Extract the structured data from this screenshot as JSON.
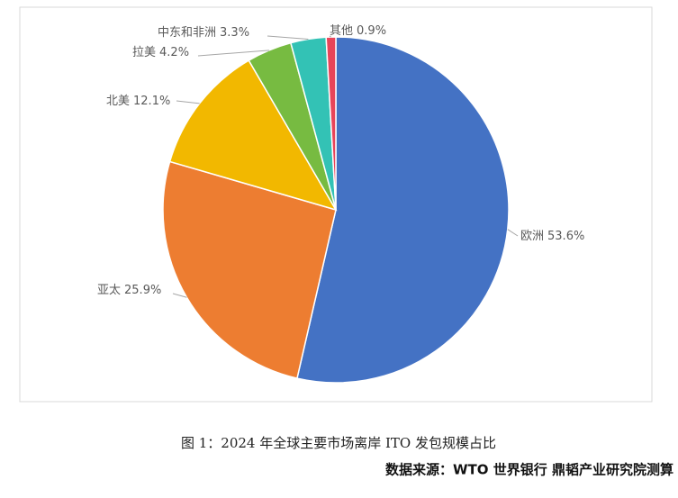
{
  "chart_data": {
    "type": "pie",
    "categories": [
      "欧洲",
      "亚太",
      "北美",
      "拉美",
      "中东和非洲",
      "其他"
    ],
    "values": [
      53.6,
      25.9,
      12.1,
      4.2,
      3.3,
      0.9
    ],
    "value_labels": [
      "53.6%",
      "25.9%",
      "12.1%",
      "4.2%",
      "3.3%",
      "0.9%"
    ],
    "colors": [
      "#4472c4",
      "#ed7d31",
      "#f2b800",
      "#77bb41",
      "#33c2b5",
      "#e8455a"
    ],
    "caption": "图 1：2024 年全球主要市场离岸 ITO 发包规模占比",
    "source": "数据来源：WTO 世界银行 鼎韬产业研究院测算"
  }
}
